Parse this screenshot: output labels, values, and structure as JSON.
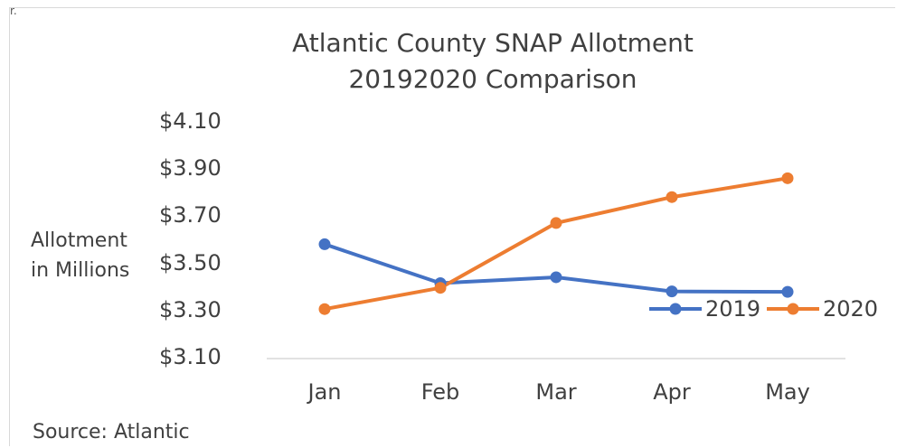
{
  "corner_mark": "r.",
  "chart_data": {
    "type": "line",
    "title_line1": "Atlantic County SNAP Allotment",
    "title_line2": "20192020 Comparison",
    "ylabel_line1": "Allotment",
    "ylabel_line2": "in Millions",
    "categories": [
      "Jan",
      "Feb",
      "Mar",
      "Apr",
      "May"
    ],
    "ylim": [
      3.1,
      4.1
    ],
    "yticks": [
      "$3.10",
      "$3.30",
      "$3.50",
      "$3.70",
      "$3.90",
      "$4.10"
    ],
    "ytick_values": [
      3.1,
      3.3,
      3.5,
      3.7,
      3.9,
      4.1
    ],
    "grid": false,
    "legend_position": "bottom-right",
    "series": [
      {
        "name": "2019",
        "color": "#4472c4",
        "values": [
          3.585,
          3.42,
          3.445,
          3.385,
          3.383
        ]
      },
      {
        "name": "2020",
        "color": "#ed7d31",
        "values": [
          3.31,
          3.4,
          3.675,
          3.785,
          3.865
        ]
      }
    ]
  },
  "source_text": "Source: Atlantic"
}
